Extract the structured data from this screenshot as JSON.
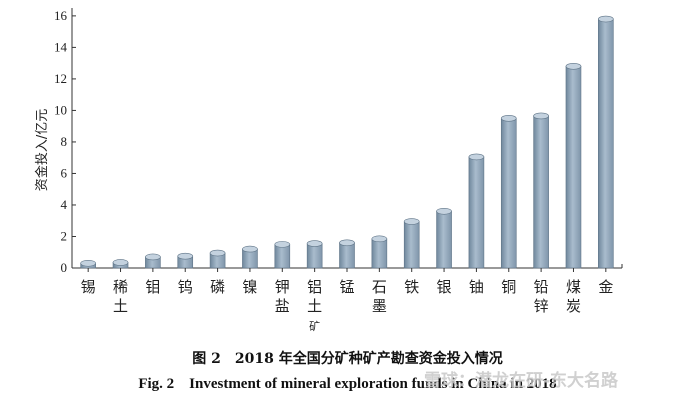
{
  "chart_data": {
    "type": "bar",
    "ylabel": "资金投入/亿元",
    "ylim": [
      0,
      16.5
    ],
    "yticks": [
      0,
      2,
      4,
      6,
      8,
      10,
      12,
      14,
      16
    ],
    "categories": [
      "锡",
      "稀土",
      "钼",
      "钨",
      "磷",
      "镍",
      "钾盐",
      "铝土矿",
      "锰",
      "石墨",
      "铁",
      "银",
      "铀",
      "铜",
      "铅锌",
      "煤炭",
      "金"
    ],
    "values": [
      0.3,
      0.35,
      0.7,
      0.75,
      0.95,
      1.2,
      1.5,
      1.55,
      1.6,
      1.85,
      2.95,
      3.6,
      7.05,
      9.5,
      9.65,
      12.8,
      15.8
    ],
    "bar_color": "#8a9fb3",
    "grid": false,
    "caption_cn": "图 2　2018 年全国分矿种矿产勘查资金投入情况",
    "caption_en": "Fig. 2　Investment of mineral exploration funds in China in 2018"
  },
  "watermark": "雪球：潜龙在研-东大名路"
}
